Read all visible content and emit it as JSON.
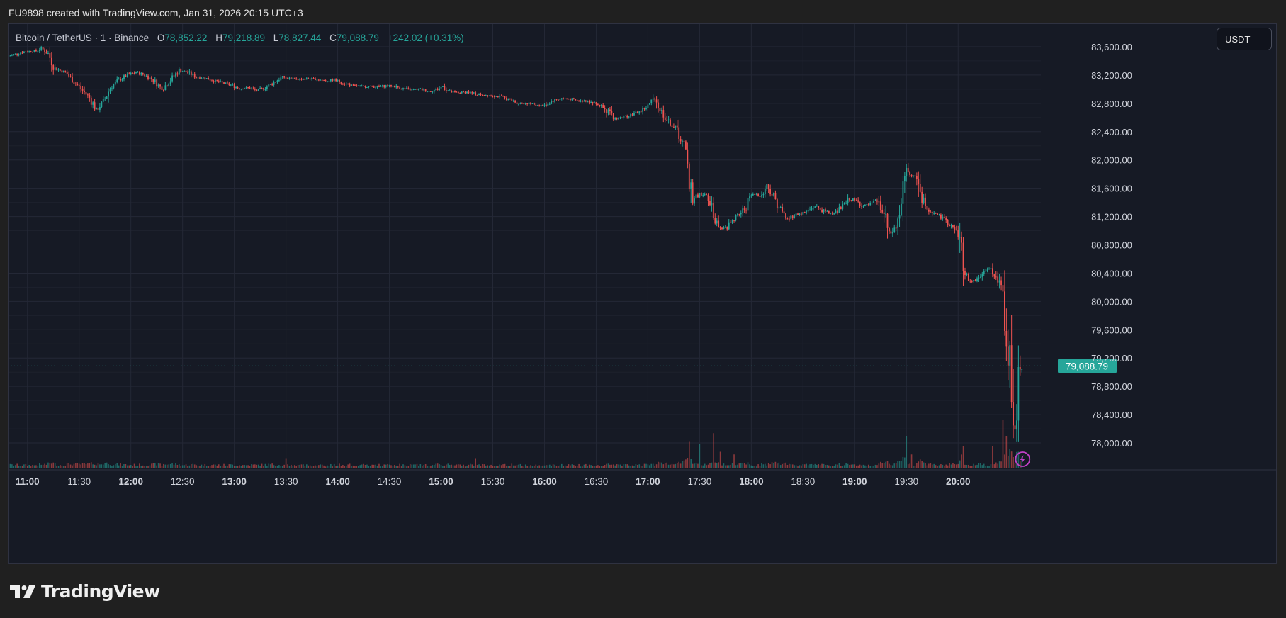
{
  "caption": "FU9898 created with TradingView.com, Jan 31, 2026 20:15 UTC+3",
  "legend": {
    "symbol": "Bitcoin / TetherUS · 1 · Binance",
    "o_label": "O",
    "o": "78,852.22",
    "h_label": "H",
    "h": "79,218.89",
    "l_label": "L",
    "l": "78,827.44",
    "c_label": "C",
    "c": "79,088.79",
    "change": "+242.02 (+0.31%)"
  },
  "currency": "USDT",
  "brand": "TradingView",
  "last_price_label": "79,088.79",
  "colors": {
    "up": "#26a69a",
    "down": "#ef5350",
    "background": "#161a25",
    "grid": "#242836",
    "axis_text": "#d1d4dc",
    "alert_icon": "#c340c8"
  },
  "icons": [
    "tradingview-logo-icon",
    "lightning-alert-icon"
  ],
  "chart_data": {
    "type": "candlestick",
    "title": "",
    "y_ticks": [
      78000,
      78400,
      78800,
      79200,
      79600,
      80000,
      80400,
      80800,
      81200,
      81600,
      82000,
      82400,
      82800,
      83200,
      83600
    ],
    "y_tick_labels": [
      "78,000.00",
      "78,400.00",
      "78,800.00",
      "79,200.00",
      "79,600.00",
      "80,000.00",
      "80,400.00",
      "80,800.00",
      "81,200.00",
      "81,600.00",
      "82,000.00",
      "82,400.00",
      "82,800.00",
      "83,200.00",
      "83,600.00"
    ],
    "x_ticks": [
      {
        "label": "11:00",
        "minute": 0,
        "bold": true
      },
      {
        "label": "11:30",
        "minute": 30,
        "bold": false
      },
      {
        "label": "12:00",
        "minute": 60,
        "bold": true
      },
      {
        "label": "12:30",
        "minute": 90,
        "bold": false
      },
      {
        "label": "13:00",
        "minute": 120,
        "bold": true
      },
      {
        "label": "13:30",
        "minute": 150,
        "bold": false
      },
      {
        "label": "14:00",
        "minute": 180,
        "bold": true
      },
      {
        "label": "14:30",
        "minute": 210,
        "bold": false
      },
      {
        "label": "15:00",
        "minute": 240,
        "bold": true
      },
      {
        "label": "15:30",
        "minute": 270,
        "bold": false
      },
      {
        "label": "16:00",
        "minute": 300,
        "bold": true
      },
      {
        "label": "16:30",
        "minute": 330,
        "bold": false
      },
      {
        "label": "17:00",
        "minute": 360,
        "bold": true
      },
      {
        "label": "17:30",
        "minute": 390,
        "bold": false
      },
      {
        "label": "18:00",
        "minute": 420,
        "bold": true
      },
      {
        "label": "18:30",
        "minute": 450,
        "bold": false
      },
      {
        "label": "19:00",
        "minute": 480,
        "bold": true
      },
      {
        "label": "19:30",
        "minute": 510,
        "bold": false
      },
      {
        "label": "20:00",
        "minute": 540,
        "bold": true
      }
    ],
    "x_range_minutes": [
      -11,
      588
    ],
    "y_range": [
      77650,
      83920
    ],
    "last_price": 79088.79,
    "close_path": [
      [
        -11,
        83470
      ],
      [
        -2,
        83530
      ],
      [
        5,
        83540
      ],
      [
        8,
        83580
      ],
      [
        12,
        83500
      ],
      [
        16,
        83290
      ],
      [
        22,
        83240
      ],
      [
        28,
        83080
      ],
      [
        32,
        82980
      ],
      [
        36,
        82880
      ],
      [
        40,
        82710
      ],
      [
        44,
        82820
      ],
      [
        48,
        83020
      ],
      [
        53,
        83130
      ],
      [
        58,
        83200
      ],
      [
        63,
        83240
      ],
      [
        68,
        83200
      ],
      [
        73,
        83130
      ],
      [
        78,
        83000
      ],
      [
        83,
        83130
      ],
      [
        88,
        83270
      ],
      [
        93,
        83240
      ],
      [
        98,
        83170
      ],
      [
        103,
        83160
      ],
      [
        108,
        83120
      ],
      [
        113,
        83090
      ],
      [
        118,
        83060
      ],
      [
        123,
        83010
      ],
      [
        128,
        83020
      ],
      [
        133,
        82980
      ],
      [
        138,
        83020
      ],
      [
        143,
        83100
      ],
      [
        148,
        83170
      ],
      [
        153,
        83150
      ],
      [
        158,
        83140
      ],
      [
        163,
        83150
      ],
      [
        168,
        83140
      ],
      [
        173,
        83120
      ],
      [
        178,
        83130
      ],
      [
        183,
        83090
      ],
      [
        188,
        83050
      ],
      [
        193,
        83040
      ],
      [
        198,
        83040
      ],
      [
        203,
        83030
      ],
      [
        208,
        83050
      ],
      [
        213,
        83040
      ],
      [
        218,
        83010
      ],
      [
        223,
        82990
      ],
      [
        228,
        83000
      ],
      [
        233,
        82970
      ],
      [
        238,
        83000
      ],
      [
        241,
        83040
      ],
      [
        245,
        82960
      ],
      [
        250,
        82950
      ],
      [
        255,
        82960
      ],
      [
        260,
        82930
      ],
      [
        265,
        82920
      ],
      [
        270,
        82910
      ],
      [
        275,
        82890
      ],
      [
        280,
        82850
      ],
      [
        285,
        82800
      ],
      [
        290,
        82800
      ],
      [
        295,
        82780
      ],
      [
        300,
        82770
      ],
      [
        305,
        82840
      ],
      [
        310,
        82870
      ],
      [
        315,
        82860
      ],
      [
        320,
        82830
      ],
      [
        325,
        82840
      ],
      [
        330,
        82790
      ],
      [
        335,
        82750
      ],
      [
        340,
        82580
      ],
      [
        345,
        82600
      ],
      [
        350,
        82640
      ],
      [
        355,
        82680
      ],
      [
        360,
        82760
      ],
      [
        364,
        82880
      ],
      [
        367,
        82720
      ],
      [
        372,
        82530
      ],
      [
        377,
        82430
      ],
      [
        381,
        82170
      ],
      [
        384,
        81720
      ],
      [
        386,
        81450
      ],
      [
        390,
        81520
      ],
      [
        395,
        81480
      ],
      [
        398,
        81240
      ],
      [
        402,
        81000
      ],
      [
        406,
        81050
      ],
      [
        410,
        81180
      ],
      [
        413,
        81230
      ],
      [
        417,
        81340
      ],
      [
        420,
        81500
      ],
      [
        423,
        81520
      ],
      [
        426,
        81490
      ],
      [
        429,
        81650
      ],
      [
        432,
        81530
      ],
      [
        435,
        81380
      ],
      [
        438,
        81260
      ],
      [
        441,
        81160
      ],
      [
        445,
        81230
      ],
      [
        449,
        81240
      ],
      [
        453,
        81280
      ],
      [
        457,
        81350
      ],
      [
        461,
        81290
      ],
      [
        465,
        81250
      ],
      [
        469,
        81260
      ],
      [
        473,
        81340
      ],
      [
        477,
        81450
      ],
      [
        481,
        81420
      ],
      [
        485,
        81350
      ],
      [
        489,
        81370
      ],
      [
        493,
        81420
      ],
      [
        497,
        81220
      ],
      [
        500,
        80940
      ],
      [
        504,
        81050
      ],
      [
        507,
        81340
      ],
      [
        510,
        81860
      ],
      [
        513,
        81750
      ],
      [
        516,
        81780
      ],
      [
        519,
        81450
      ],
      [
        522,
        81310
      ],
      [
        525,
        81260
      ],
      [
        529,
        81200
      ],
      [
        533,
        81130
      ],
      [
        537,
        81040
      ],
      [
        541,
        80910
      ],
      [
        543,
        80420
      ],
      [
        547,
        80290
      ],
      [
        551,
        80310
      ],
      [
        555,
        80420
      ],
      [
        559,
        80470
      ],
      [
        563,
        80300
      ],
      [
        566,
        80060
      ],
      [
        568,
        79600
      ],
      [
        570,
        79100
      ],
      [
        572,
        78500
      ],
      [
        573,
        78200
      ],
      [
        575,
        78900
      ],
      [
        577,
        79090
      ]
    ],
    "volume_spikes": [
      [
        150,
        0.18
      ],
      [
        260,
        0.18
      ],
      [
        384,
        0.5
      ],
      [
        390,
        0.45
      ],
      [
        398,
        0.65
      ],
      [
        402,
        0.3
      ],
      [
        410,
        0.25
      ],
      [
        510,
        0.6
      ],
      [
        513,
        0.25
      ],
      [
        543,
        0.4
      ],
      [
        560,
        0.4
      ],
      [
        566,
        0.9
      ],
      [
        568,
        0.6
      ],
      [
        570,
        0.35
      ],
      [
        572,
        0.2
      ],
      [
        575,
        0.3
      ],
      [
        577,
        0.2
      ]
    ]
  }
}
